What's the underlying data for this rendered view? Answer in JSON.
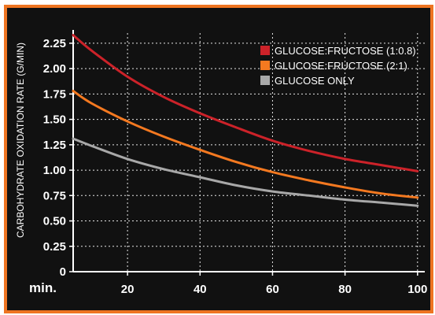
{
  "chart_data": {
    "type": "line",
    "title": "",
    "xlabel": "min.",
    "ylabel": "CARBOHYDRATE OXIDATION RATE (G/MIN)",
    "xlim": [
      5,
      102
    ],
    "ylim": [
      0,
      2.35
    ],
    "x_ticks": [
      "20",
      "40",
      "60",
      "80",
      "100"
    ],
    "x_tick_values": [
      20,
      40,
      60,
      80,
      100
    ],
    "y_ticks": [
      "0",
      "0.25",
      "0.50",
      "0.75",
      "1.00",
      "1.25",
      "1.50",
      "1.75",
      "2.00",
      "2.25"
    ],
    "y_tick_values": [
      0,
      0.25,
      0.5,
      0.75,
      1.0,
      1.25,
      1.5,
      1.75,
      2.0,
      2.25
    ],
    "grid": true,
    "legend_position": "top-right",
    "series": [
      {
        "name": "GLUCOSE:FRUCTOSE (1:0.8)",
        "color": "#cc2229",
        "x": [
          5,
          10,
          20,
          30,
          40,
          50,
          60,
          70,
          80,
          90,
          100
        ],
        "y": [
          2.33,
          2.18,
          1.92,
          1.72,
          1.56,
          1.42,
          1.29,
          1.19,
          1.11,
          1.05,
          0.99
        ]
      },
      {
        "name": "GLUCOSE:FRUCTOSE (2:1)",
        "color": "#f47920",
        "x": [
          5,
          10,
          20,
          30,
          40,
          50,
          60,
          70,
          80,
          90,
          100
        ],
        "y": [
          1.78,
          1.66,
          1.48,
          1.33,
          1.2,
          1.08,
          0.98,
          0.9,
          0.83,
          0.77,
          0.73
        ]
      },
      {
        "name": "GLUCOSE ONLY",
        "color": "#a8a8a8",
        "x": [
          5,
          10,
          20,
          30,
          40,
          50,
          60,
          70,
          80,
          90,
          100
        ],
        "y": [
          1.31,
          1.24,
          1.11,
          1.01,
          0.93,
          0.85,
          0.79,
          0.75,
          0.71,
          0.68,
          0.65
        ]
      }
    ]
  }
}
